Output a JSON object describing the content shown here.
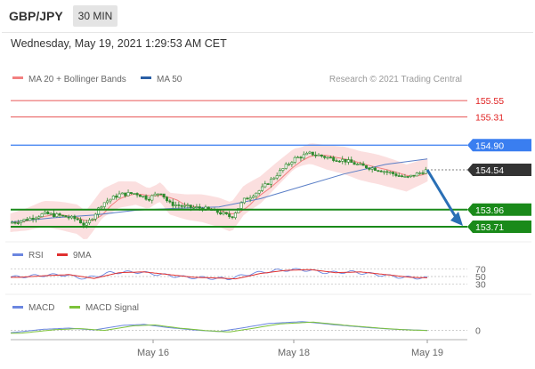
{
  "header": {
    "symbol": "GBP/JPY",
    "timeframe": "30 MIN",
    "datetime": "Wednesday, May 19, 2021 1:29:53 AM CET"
  },
  "colors": {
    "candle": "#2e8b2e",
    "bollinger": "#f4a5a5",
    "ma20": "#f28080",
    "ma50": "#5b7fc7",
    "resistance": "#e02020",
    "pivot": "#3a7ef0",
    "support": "#1a8a1a",
    "last_price": "#333333",
    "arrow": "#2a6fb5",
    "rsi": "#6b86e0",
    "rsi_ma": "#e03030",
    "macd": "#6b86e0",
    "macd_signal": "#7cc23a"
  },
  "chart_data": [
    {
      "type": "candlestick",
      "legend": [
        {
          "name": "MA 20 + Bollinger Bands",
          "color": "#f28080"
        },
        {
          "name": "MA 50",
          "color": "#2a5fa5"
        }
      ],
      "credit": "Research © 2021 Trading Central",
      "x_ticks": [
        "May 16",
        "May 18",
        "May 19"
      ],
      "y_range": [
        153.62,
        155.72
      ],
      "levels": [
        {
          "value": 155.55,
          "label": "155.55",
          "kind": "resistance"
        },
        {
          "value": 155.31,
          "label": "155.31",
          "kind": "resistance"
        },
        {
          "value": 154.9,
          "label": "154.90",
          "kind": "pivot"
        },
        {
          "value": 154.54,
          "label": "154.54",
          "kind": "last"
        },
        {
          "value": 153.96,
          "label": "153.96",
          "kind": "support"
        },
        {
          "value": 153.71,
          "label": "153.71",
          "kind": "support"
        }
      ],
      "price_path": [
        [
          0,
          153.77
        ],
        [
          0.04,
          153.82
        ],
        [
          0.08,
          153.9
        ],
        [
          0.12,
          153.87
        ],
        [
          0.16,
          153.82
        ],
        [
          0.18,
          153.72
        ],
        [
          0.2,
          153.88
        ],
        [
          0.22,
          154.05
        ],
        [
          0.26,
          154.18
        ],
        [
          0.3,
          154.2
        ],
        [
          0.33,
          154.12
        ],
        [
          0.36,
          154.22
        ],
        [
          0.38,
          154.05
        ],
        [
          0.42,
          154.0
        ],
        [
          0.46,
          153.98
        ],
        [
          0.5,
          153.92
        ],
        [
          0.53,
          153.85
        ],
        [
          0.56,
          154.1
        ],
        [
          0.6,
          154.25
        ],
        [
          0.64,
          154.48
        ],
        [
          0.68,
          154.7
        ],
        [
          0.72,
          154.78
        ],
        [
          0.76,
          154.72
        ],
        [
          0.8,
          154.68
        ],
        [
          0.84,
          154.6
        ],
        [
          0.88,
          154.55
        ],
        [
          0.92,
          154.48
        ],
        [
          0.95,
          154.42
        ],
        [
          1.0,
          154.54
        ]
      ],
      "ma50_path": [
        [
          0,
          153.78
        ],
        [
          0.1,
          153.84
        ],
        [
          0.2,
          153.88
        ],
        [
          0.3,
          153.95
        ],
        [
          0.4,
          153.98
        ],
        [
          0.5,
          154.0
        ],
        [
          0.6,
          154.12
        ],
        [
          0.7,
          154.3
        ],
        [
          0.8,
          154.48
        ],
        [
          0.9,
          154.62
        ],
        [
          1.0,
          154.7
        ]
      ],
      "forecast": {
        "from": 154.54,
        "to": 153.75
      }
    },
    {
      "type": "line",
      "legend": [
        {
          "name": "RSI",
          "color": "#6b86e0"
        },
        {
          "name": "9MA",
          "color": "#e03030"
        }
      ],
      "y_ticks": [
        "70",
        "50",
        "30"
      ],
      "y_range": [
        20,
        80
      ],
      "rsi": [
        [
          0,
          48
        ],
        [
          0.06,
          52
        ],
        [
          0.12,
          55
        ],
        [
          0.18,
          45
        ],
        [
          0.24,
          60
        ],
        [
          0.3,
          62
        ],
        [
          0.36,
          55
        ],
        [
          0.42,
          48
        ],
        [
          0.48,
          46
        ],
        [
          0.52,
          44
        ],
        [
          0.58,
          58
        ],
        [
          0.64,
          66
        ],
        [
          0.7,
          68
        ],
        [
          0.76,
          60
        ],
        [
          0.82,
          62
        ],
        [
          0.88,
          55
        ],
        [
          0.94,
          48
        ],
        [
          1.0,
          46
        ]
      ]
    },
    {
      "type": "line",
      "legend": [
        {
          "name": "MACD",
          "color": "#6b86e0"
        },
        {
          "name": "MACD Signal",
          "color": "#7cc23a"
        }
      ],
      "y_ticks": [
        "0"
      ],
      "y_range": [
        -0.4,
        0.6
      ],
      "macd": [
        [
          0,
          -0.1
        ],
        [
          0.08,
          0.05
        ],
        [
          0.14,
          0.1
        ],
        [
          0.2,
          0.02
        ],
        [
          0.27,
          0.22
        ],
        [
          0.32,
          0.26
        ],
        [
          0.38,
          0.12
        ],
        [
          0.44,
          0.02
        ],
        [
          0.5,
          -0.05
        ],
        [
          0.56,
          0.12
        ],
        [
          0.62,
          0.3
        ],
        [
          0.7,
          0.38
        ],
        [
          0.78,
          0.24
        ],
        [
          0.86,
          0.12
        ],
        [
          0.92,
          0.05
        ],
        [
          1.0,
          0.0
        ]
      ]
    }
  ]
}
